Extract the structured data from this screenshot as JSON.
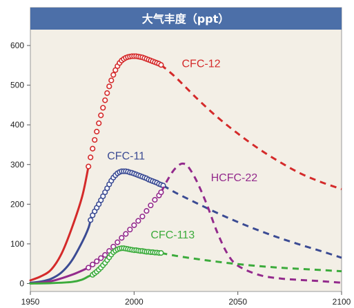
{
  "chart_data": {
    "type": "line",
    "title": "大气丰度（ppt）",
    "xlabel": "",
    "ylabel": "",
    "xlim": [
      1950,
      2100
    ],
    "ylim": [
      -20,
      640
    ],
    "xticks": [
      1950,
      2000,
      2050,
      2100
    ],
    "yticks": [
      0,
      100,
      200,
      300,
      400,
      500,
      600
    ],
    "grid": false,
    "background": "#f3efe6",
    "title_bar_color": "#4c6fa8",
    "series": [
      {
        "name": "CFC-12",
        "color": "#d42a2a",
        "observed_line": [
          [
            1950,
            8
          ],
          [
            1955,
            18
          ],
          [
            1960,
            35
          ],
          [
            1965,
            75
          ],
          [
            1970,
            140
          ],
          [
            1975,
            220
          ],
          [
            1978,
            295
          ]
        ],
        "observed_markers": [
          [
            1978,
            295
          ],
          [
            1979,
            318
          ],
          [
            1980,
            340
          ],
          [
            1981,
            362
          ],
          [
            1982,
            383
          ],
          [
            1983,
            404
          ],
          [
            1984,
            424
          ],
          [
            1985,
            443
          ],
          [
            1986,
            462
          ],
          [
            1987,
            480
          ],
          [
            1988,
            497
          ],
          [
            1989,
            512
          ],
          [
            1990,
            526
          ],
          [
            1991,
            538
          ],
          [
            1992,
            548
          ],
          [
            1993,
            556
          ],
          [
            1994,
            562
          ],
          [
            1995,
            566
          ],
          [
            1996,
            569
          ],
          [
            1997,
            571
          ],
          [
            1998,
            572
          ],
          [
            1999,
            573
          ],
          [
            2000,
            573
          ],
          [
            2001,
            573
          ],
          [
            2002,
            572
          ],
          [
            2003,
            571
          ],
          [
            2004,
            570
          ],
          [
            2005,
            568
          ],
          [
            2006,
            566
          ],
          [
            2007,
            564
          ],
          [
            2008,
            562
          ],
          [
            2009,
            560
          ],
          [
            2010,
            558
          ],
          [
            2011,
            556
          ],
          [
            2012,
            554
          ],
          [
            2013,
            551
          ]
        ],
        "projection": [
          [
            2013,
            551
          ],
          [
            2020,
            520
          ],
          [
            2030,
            468
          ],
          [
            2040,
            420
          ],
          [
            2050,
            378
          ],
          [
            2060,
            340
          ],
          [
            2070,
            307
          ],
          [
            2080,
            278
          ],
          [
            2090,
            256
          ],
          [
            2100,
            238
          ]
        ]
      },
      {
        "name": "CFC-11",
        "color": "#3b4b93",
        "observed_line": [
          [
            1950,
            2
          ],
          [
            1955,
            5
          ],
          [
            1960,
            12
          ],
          [
            1965,
            28
          ],
          [
            1970,
            58
          ],
          [
            1975,
            105
          ],
          [
            1978,
            140
          ],
          [
            1979,
            160
          ]
        ],
        "observed_markers": [
          [
            1979,
            160
          ],
          [
            1980,
            172
          ],
          [
            1981,
            182
          ],
          [
            1982,
            191
          ],
          [
            1983,
            200
          ],
          [
            1984,
            210
          ],
          [
            1985,
            220
          ],
          [
            1986,
            230
          ],
          [
            1987,
            240
          ],
          [
            1988,
            250
          ],
          [
            1989,
            259
          ],
          [
            1990,
            267
          ],
          [
            1991,
            273
          ],
          [
            1992,
            278
          ],
          [
            1993,
            281
          ],
          [
            1994,
            283
          ],
          [
            1995,
            283
          ],
          [
            1996,
            283
          ],
          [
            1997,
            282
          ],
          [
            1998,
            280
          ],
          [
            1999,
            279
          ],
          [
            2000,
            277
          ],
          [
            2001,
            275
          ],
          [
            2002,
            273
          ],
          [
            2003,
            271
          ],
          [
            2004,
            269
          ],
          [
            2005,
            267
          ],
          [
            2006,
            265
          ],
          [
            2007,
            262
          ],
          [
            2008,
            260
          ],
          [
            2009,
            258
          ],
          [
            2010,
            256
          ],
          [
            2011,
            254
          ],
          [
            2012,
            251
          ],
          [
            2013,
            249
          ],
          [
            2014,
            247
          ]
        ],
        "projection": [
          [
            2014,
            247
          ],
          [
            2020,
            229
          ],
          [
            2030,
            203
          ],
          [
            2040,
            178
          ],
          [
            2050,
            155
          ],
          [
            2060,
            134
          ],
          [
            2070,
            115
          ],
          [
            2080,
            98
          ],
          [
            2090,
            82
          ],
          [
            2100,
            65
          ]
        ]
      },
      {
        "name": "HCFC-22",
        "color": "#932a8c",
        "observed_line": [
          [
            1950,
            0
          ],
          [
            1960,
            6
          ],
          [
            1970,
            22
          ],
          [
            1978,
            40
          ]
        ],
        "observed_markers": [
          [
            1978,
            40
          ],
          [
            1980,
            48
          ],
          [
            1982,
            56
          ],
          [
            1984,
            64
          ],
          [
            1986,
            72
          ],
          [
            1988,
            82
          ],
          [
            1990,
            93
          ],
          [
            1992,
            104
          ],
          [
            1994,
            115
          ],
          [
            1996,
            125
          ],
          [
            1998,
            136
          ],
          [
            2000,
            147
          ],
          [
            2002,
            158
          ],
          [
            2004,
            169
          ],
          [
            2006,
            183
          ],
          [
            2008,
            197
          ],
          [
            2010,
            211
          ],
          [
            2012,
            222
          ],
          [
            2013,
            230
          ]
        ],
        "projection": [
          [
            2013,
            230
          ],
          [
            2016,
            260
          ],
          [
            2019,
            285
          ],
          [
            2022,
            300
          ],
          [
            2024,
            302
          ],
          [
            2026,
            295
          ],
          [
            2030,
            260
          ],
          [
            2035,
            200
          ],
          [
            2040,
            130
          ],
          [
            2045,
            75
          ],
          [
            2050,
            45
          ],
          [
            2060,
            22
          ],
          [
            2070,
            13
          ],
          [
            2080,
            9
          ],
          [
            2090,
            6
          ],
          [
            2100,
            2
          ]
        ]
      },
      {
        "name": "CFC-113",
        "color": "#3cab3c",
        "observed_line": [
          [
            1950,
            0
          ],
          [
            1960,
            1
          ],
          [
            1970,
            4
          ],
          [
            1975,
            10
          ],
          [
            1978,
            18
          ],
          [
            1980,
            22
          ]
        ],
        "observed_markers": [
          [
            1980,
            22
          ],
          [
            1981,
            26
          ],
          [
            1982,
            30
          ],
          [
            1983,
            35
          ],
          [
            1984,
            40
          ],
          [
            1985,
            46
          ],
          [
            1986,
            52
          ],
          [
            1987,
            59
          ],
          [
            1988,
            66
          ],
          [
            1989,
            73
          ],
          [
            1990,
            79
          ],
          [
            1991,
            83
          ],
          [
            1992,
            86
          ],
          [
            1993,
            88
          ],
          [
            1994,
            89
          ],
          [
            1995,
            89
          ],
          [
            1996,
            88
          ],
          [
            1997,
            87
          ],
          [
            1998,
            86
          ],
          [
            1999,
            85
          ],
          [
            2000,
            84
          ],
          [
            2001,
            84
          ],
          [
            2002,
            83
          ],
          [
            2003,
            82
          ],
          [
            2004,
            82
          ],
          [
            2005,
            81
          ],
          [
            2006,
            80
          ],
          [
            2007,
            80
          ],
          [
            2008,
            79
          ],
          [
            2009,
            79
          ],
          [
            2010,
            78
          ],
          [
            2011,
            78
          ],
          [
            2012,
            77
          ],
          [
            2013,
            77
          ]
        ],
        "projection": [
          [
            2013,
            77
          ],
          [
            2020,
            70
          ],
          [
            2030,
            62
          ],
          [
            2040,
            55
          ],
          [
            2050,
            49
          ],
          [
            2060,
            44
          ],
          [
            2070,
            40
          ],
          [
            2080,
            37
          ],
          [
            2090,
            34
          ],
          [
            2100,
            31
          ]
        ]
      }
    ],
    "annotations": [
      {
        "text": "CFC-12",
        "series": "CFC-12",
        "x": 2023,
        "y": 545
      },
      {
        "text": "CFC-11",
        "series": "CFC-11",
        "x": 1987,
        "y": 313
      },
      {
        "text": "HCFC-22",
        "series": "HCFC-22",
        "x": 2037,
        "y": 258
      },
      {
        "text": "CFC-113",
        "series": "CFC-113",
        "x": 2008,
        "y": 114
      }
    ]
  }
}
